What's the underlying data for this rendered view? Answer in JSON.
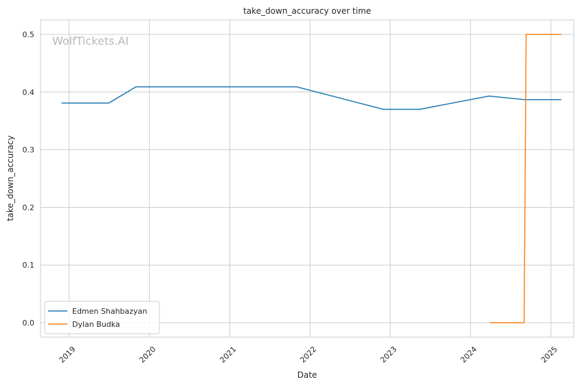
{
  "watermark": "WolfTickets.AI",
  "chart_data": {
    "type": "line",
    "title": "take_down_accuracy over time",
    "xlabel": "Date",
    "ylabel": "take_down_accuracy",
    "xlim": [
      "2018-08-24",
      "2025-04-15"
    ],
    "ylim": [
      -0.025,
      0.525
    ],
    "x_ticks": [
      "2019",
      "2020",
      "2021",
      "2022",
      "2023",
      "2024",
      "2025"
    ],
    "y_ticks": [
      "0.0",
      "0.1",
      "0.2",
      "0.3",
      "0.4",
      "0.5"
    ],
    "grid": true,
    "legend_position": "lower-left",
    "series": [
      {
        "name": "Edmen Shahbazyan",
        "color": "#1f77b4",
        "x": [
          "2018-11-30",
          "2019-07-01",
          "2019-11-01",
          "2021-11-01",
          "2022-12-01",
          "2023-05-15",
          "2024-03-25",
          "2024-09-01",
          "2025-02-15"
        ],
        "y": [
          0.381,
          0.381,
          0.409,
          0.409,
          0.37,
          0.37,
          0.393,
          0.387,
          0.387
        ]
      },
      {
        "name": "Dylan Budka",
        "color": "#ff7f0e",
        "x": [
          "2024-04-01",
          "2024-09-01",
          "2024-09-10",
          "2025-02-15"
        ],
        "y": [
          0.0,
          0.0,
          0.5,
          0.5
        ]
      }
    ]
  }
}
